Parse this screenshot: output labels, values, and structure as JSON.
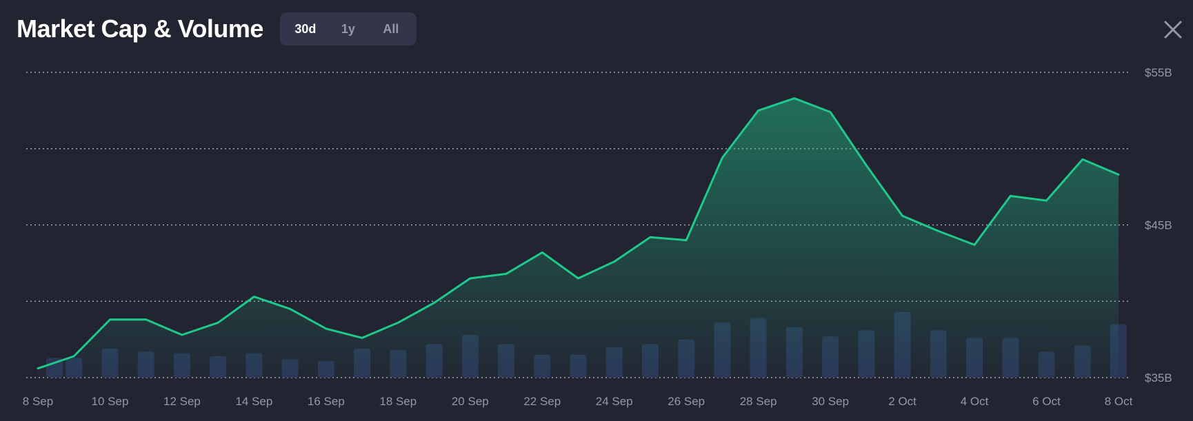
{
  "header": {
    "title": "Market Cap & Volume",
    "ranges": [
      "30d",
      "1y",
      "All"
    ],
    "active_range": "30d"
  },
  "icons": {
    "close": "close-icon"
  },
  "colors": {
    "background": "#222432",
    "line": "#1fc98a",
    "bar": "#2b3655",
    "grid": "#d0d2dc",
    "axis_text": "#9497a9",
    "switch_bg": "#33364a"
  },
  "chart_data": {
    "type": "line",
    "title": "Market Cap & Volume",
    "x_tick_labels": [
      "8 Sep",
      "10 Sep",
      "12 Sep",
      "14 Sep",
      "16 Sep",
      "18 Sep",
      "20 Sep",
      "22 Sep",
      "24 Sep",
      "26 Sep",
      "28 Sep",
      "30 Sep",
      "2 Oct",
      "4 Oct",
      "6 Oct",
      "8 Oct"
    ],
    "y_tick_labels": [
      "$55B",
      "$45B",
      "$35B"
    ],
    "ylim_billions": [
      35,
      55
    ],
    "grid": true,
    "x": [
      "2024-09-08",
      "2024-09-09",
      "2024-09-10",
      "2024-09-11",
      "2024-09-12",
      "2024-09-13",
      "2024-09-14",
      "2024-09-15",
      "2024-09-16",
      "2024-09-17",
      "2024-09-18",
      "2024-09-19",
      "2024-09-20",
      "2024-09-21",
      "2024-09-22",
      "2024-09-23",
      "2024-09-24",
      "2024-09-25",
      "2024-09-26",
      "2024-09-27",
      "2024-09-28",
      "2024-09-29",
      "2024-09-30",
      "2024-10-01",
      "2024-10-02",
      "2024-10-03",
      "2024-10-04",
      "2024-10-05",
      "2024-10-06",
      "2024-10-07",
      "2024-10-08"
    ],
    "series": [
      {
        "kind": "line-area",
        "values": [
          35.6,
          36.4,
          38.8,
          38.8,
          37.8,
          38.6,
          40.3,
          39.5,
          38.2,
          37.6,
          38.6,
          39.9,
          41.5,
          41.8,
          43.2,
          41.5,
          42.6,
          44.2,
          44.0,
          49.4,
          52.5,
          53.3,
          52.4,
          48.9,
          45.6,
          44.6,
          43.7,
          46.9,
          46.6,
          49.3,
          48.3
        ]
      },
      {
        "kind": "bar",
        "values": [
          36.3,
          36.3,
          36.9,
          36.7,
          36.6,
          36.4,
          36.6,
          36.2,
          36.1,
          36.9,
          36.8,
          37.2,
          37.8,
          37.2,
          36.5,
          36.5,
          37.0,
          37.2,
          37.5,
          38.6,
          38.9,
          38.3,
          37.7,
          38.1,
          39.3,
          38.1,
          37.6,
          37.6,
          36.7,
          37.1,
          38.5
        ]
      }
    ]
  }
}
